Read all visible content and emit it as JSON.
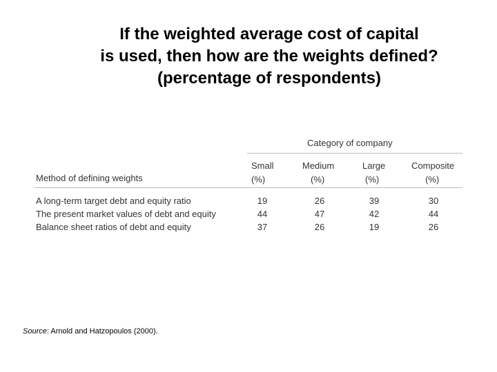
{
  "title": {
    "line1": "If the weighted average cost of capital",
    "line2": "is used, then how are the weights defined?",
    "line3": "(percentage of respondents)"
  },
  "table": {
    "category_label": "Category of company",
    "method_header": "Method of defining weights",
    "columns": [
      {
        "name": "Small",
        "unit": "(%)"
      },
      {
        "name": "Medium",
        "unit": "(%)"
      },
      {
        "name": "Large",
        "unit": "(%)"
      },
      {
        "name": "Composite",
        "unit": "(%)"
      }
    ],
    "rows": [
      {
        "label": "A long-term target debt and equity ratio",
        "values": [
          "19",
          "26",
          "39",
          "30"
        ]
      },
      {
        "label": "The present market values of debt and equity",
        "values": [
          "44",
          "47",
          "42",
          "44"
        ]
      },
      {
        "label": "Balance sheet ratios of debt and equity",
        "values": [
          "37",
          "26",
          "19",
          "26"
        ]
      }
    ]
  },
  "source": {
    "label": "Source",
    "text": ": Arnold and Hatzopoulos (2000)."
  }
}
